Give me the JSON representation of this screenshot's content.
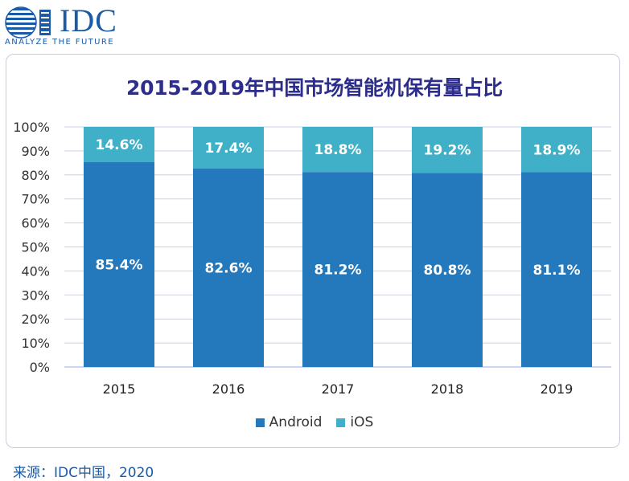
{
  "brand": {
    "name": "IDC",
    "tagline": "ANALYZE THE FUTURE"
  },
  "title": "2015-2019年中国市场智能机保有量占比",
  "legend": {
    "android": "Android",
    "ios": "iOS"
  },
  "source": "来源：IDC中国，2020",
  "colors": {
    "android": "#2479bd",
    "ios": "#3fb0c8",
    "title": "#2c2d8c",
    "grid": "#c7d2ea",
    "axis": "#9aaee0"
  },
  "chart_data": {
    "type": "bar",
    "stacked": true,
    "title": "2015-2019年中国市场智能机保有量占比",
    "xlabel": "",
    "ylabel": "",
    "ylim": [
      0,
      100
    ],
    "y_ticks": [
      "0%",
      "10%",
      "20%",
      "30%",
      "40%",
      "50%",
      "60%",
      "70%",
      "80%",
      "90%",
      "100%"
    ],
    "categories": [
      "2015",
      "2016",
      "2017",
      "2018",
      "2019"
    ],
    "series": [
      {
        "name": "Android",
        "values": [
          85.4,
          82.6,
          81.2,
          80.8,
          81.1
        ],
        "labels": [
          "85.4%",
          "82.6%",
          "81.2%",
          "80.8%",
          "81.1%"
        ]
      },
      {
        "name": "iOS",
        "values": [
          14.6,
          17.4,
          18.8,
          19.2,
          18.9
        ],
        "labels": [
          "14.6%",
          "17.4%",
          "18.8%",
          "19.2%",
          "18.9%"
        ]
      }
    ],
    "legend_position": "bottom"
  }
}
